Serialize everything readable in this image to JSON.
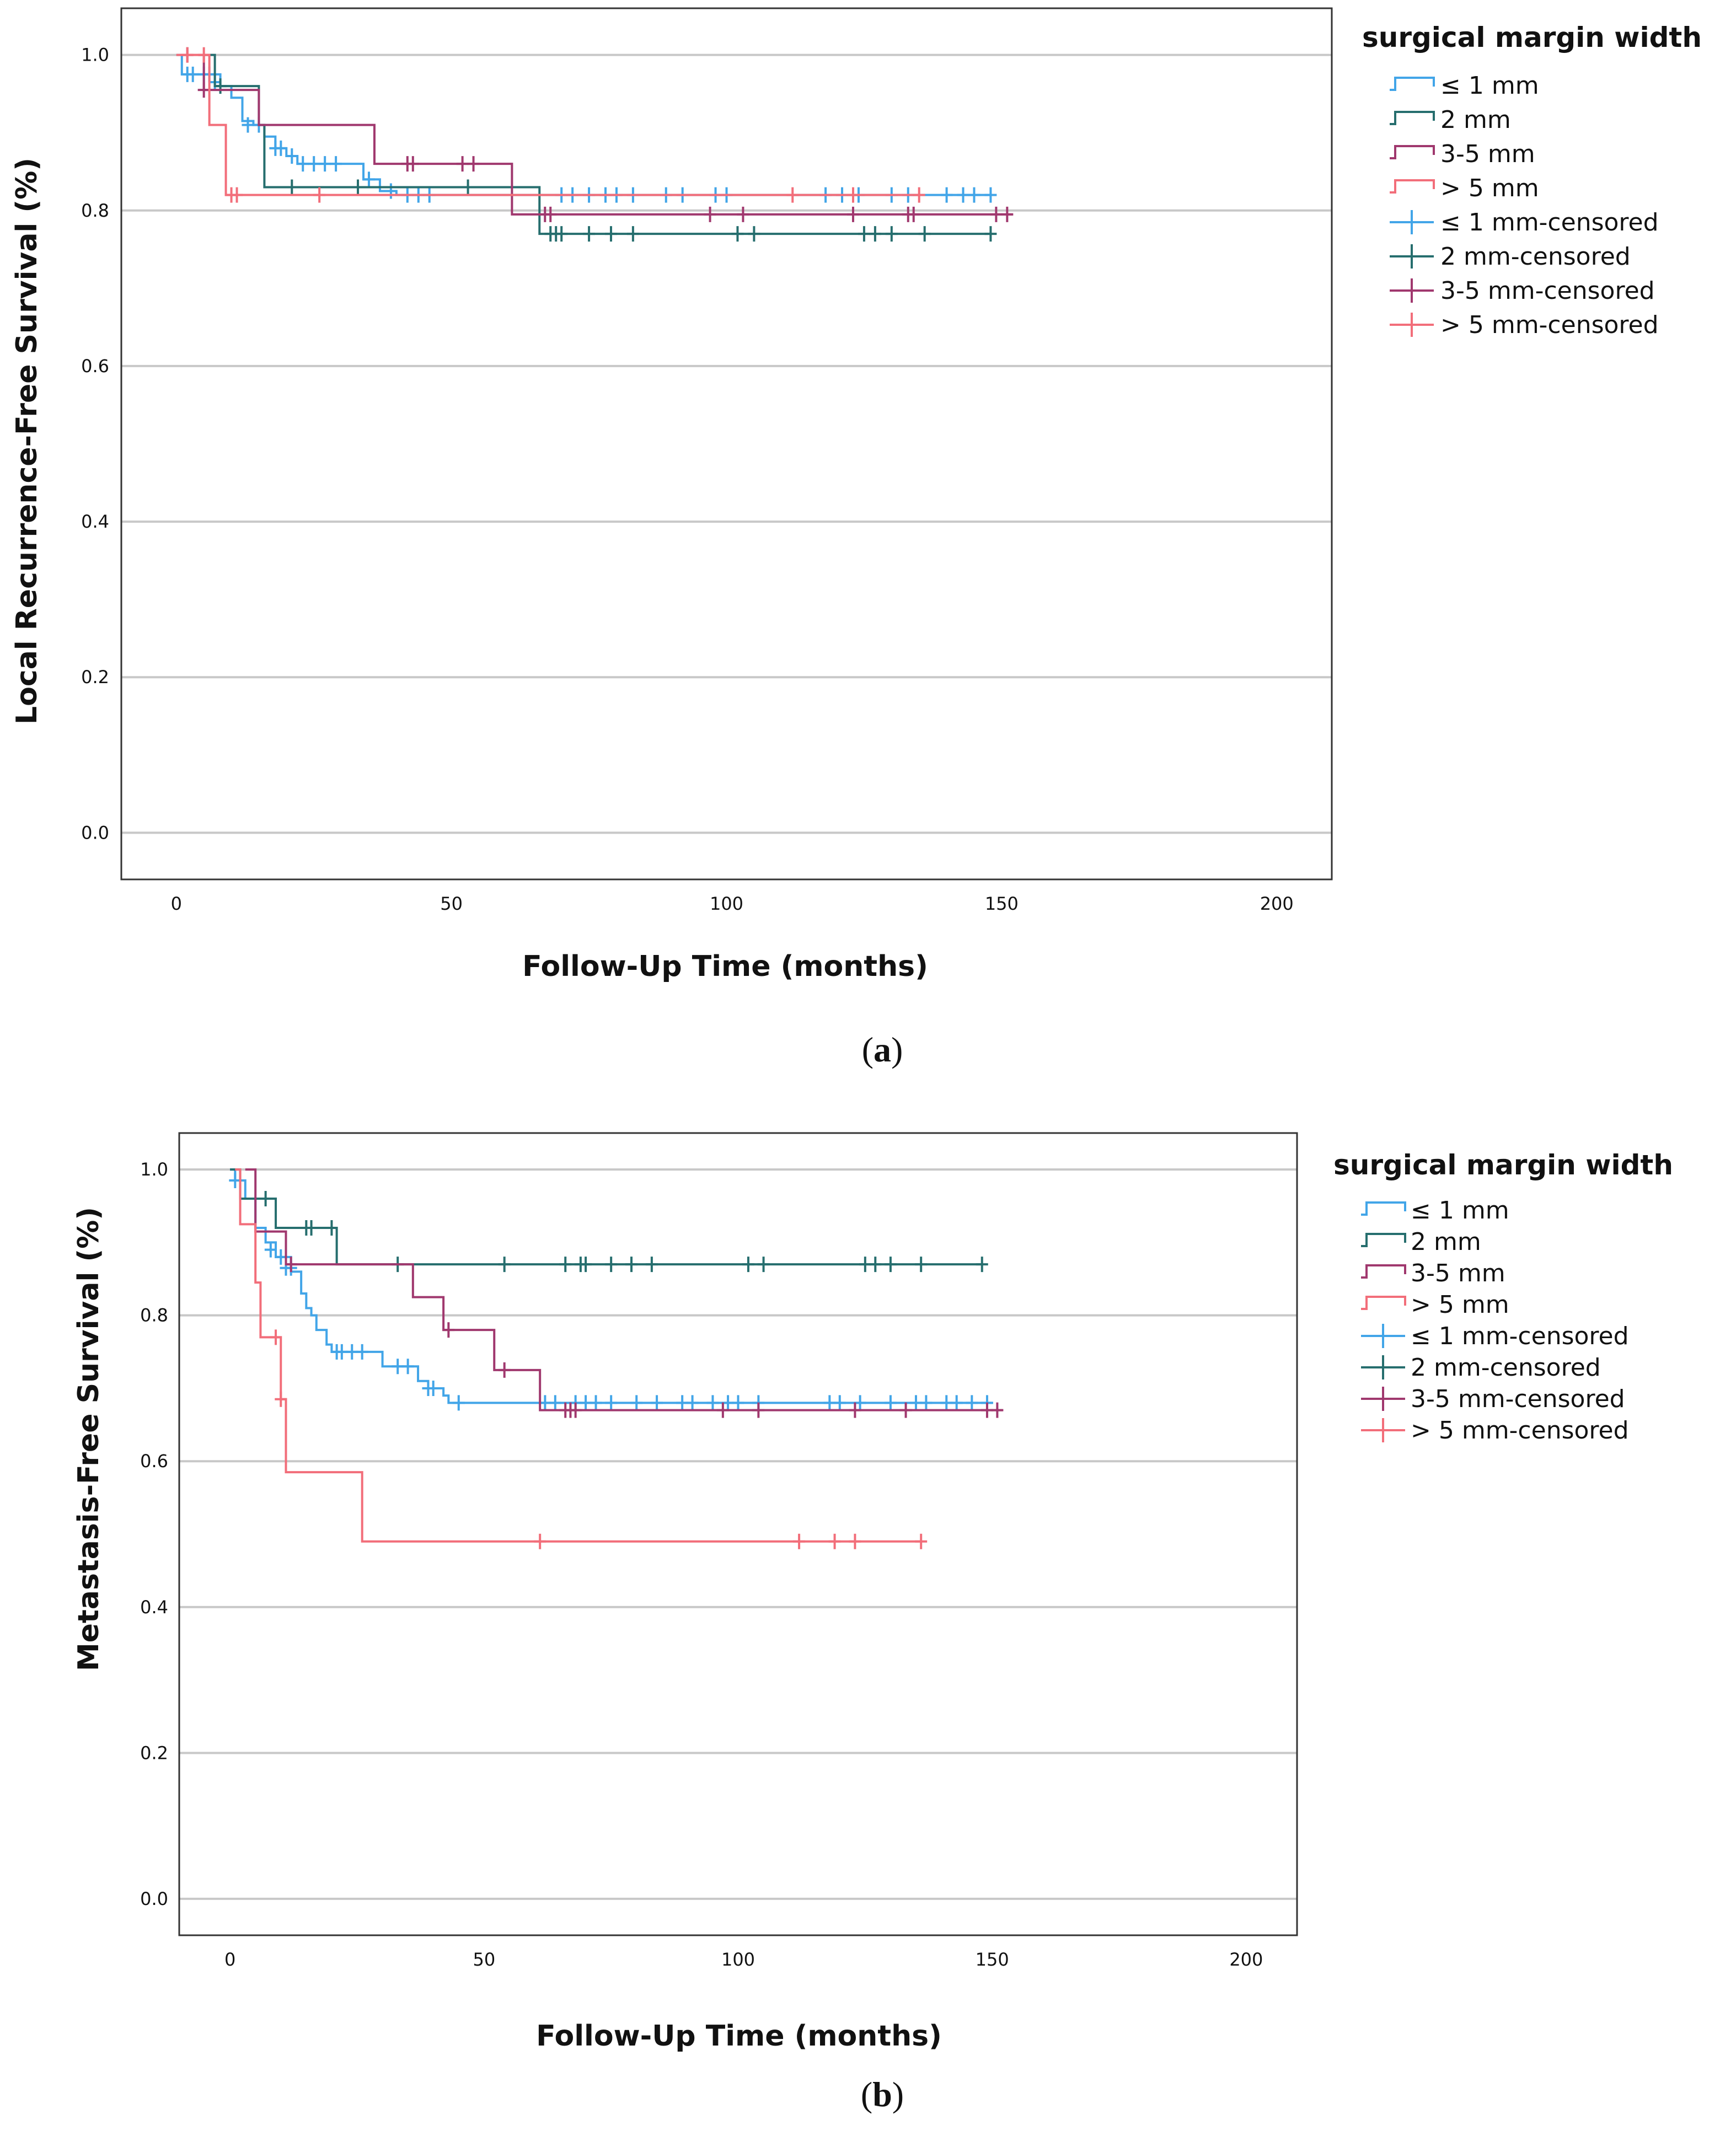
{
  "colors": {
    "le1": "#42a5e8",
    "mm2": "#266e6e",
    "mm35": "#a0386e",
    "gt5": "#f26e7a",
    "grid": "#c8c8c8",
    "frame": "#333333"
  },
  "chart_data": [
    {
      "type": "line",
      "panel_label": "a",
      "title": "",
      "xlabel": "Follow-Up Time (months)",
      "ylabel": "Local Recurrence-Free Survival (%)",
      "xlim": [
        -10,
        210
      ],
      "ylim": [
        -0.06,
        1.06
      ],
      "xticks": [
        0,
        50,
        100,
        150,
        200
      ],
      "yticks": [
        0.0,
        0.2,
        0.4,
        0.6,
        0.8,
        1.0
      ],
      "xtick_labels": [
        "0",
        "50",
        "100",
        "150",
        "200"
      ],
      "ytick_labels": [
        "0.0",
        "0.2",
        "0.4",
        "0.6",
        "0.8",
        "1.0"
      ],
      "grid": "horizontal",
      "legend": {
        "title": "surgical margin width",
        "placement": "top-right outside",
        "entries": [
          "≤ 1 mm",
          "2 mm",
          "3-5 mm",
          "> 5 mm",
          "≤ 1 mm-censored",
          "2 mm-censored",
          "3-5 mm-censored",
          "> 5 mm-censored"
        ]
      },
      "series": [
        {
          "name": "≤ 1 mm",
          "color_key": "le1",
          "steps": [
            [
              0,
              1.0
            ],
            [
              1,
              0.975
            ],
            [
              8,
              0.96
            ],
            [
              10,
              0.945
            ],
            [
              12,
              0.915
            ],
            [
              14,
              0.91
            ],
            [
              16,
              0.895
            ],
            [
              18,
              0.88
            ],
            [
              20,
              0.87
            ],
            [
              22,
              0.86
            ],
            [
              34,
              0.84
            ],
            [
              37,
              0.825
            ],
            [
              40,
              0.82
            ],
            [
              148,
              0.82
            ]
          ],
          "censored": [
            [
              2,
              0.975
            ],
            [
              3,
              0.975
            ],
            [
              5,
              0.975
            ],
            [
              6,
              0.975
            ],
            [
              7,
              0.965
            ],
            [
              13,
              0.91
            ],
            [
              15,
              0.91
            ],
            [
              18,
              0.88
            ],
            [
              19,
              0.88
            ],
            [
              21,
              0.87
            ],
            [
              23,
              0.86
            ],
            [
              25,
              0.86
            ],
            [
              27,
              0.86
            ],
            [
              29,
              0.86
            ],
            [
              35,
              0.84
            ],
            [
              39,
              0.825
            ],
            [
              42,
              0.82
            ],
            [
              44,
              0.82
            ],
            [
              46,
              0.82
            ],
            [
              70,
              0.82
            ],
            [
              72,
              0.82
            ],
            [
              75,
              0.82
            ],
            [
              78,
              0.82
            ],
            [
              80,
              0.82
            ],
            [
              83,
              0.82
            ],
            [
              89,
              0.82
            ],
            [
              92,
              0.82
            ],
            [
              98,
              0.82
            ],
            [
              100,
              0.82
            ],
            [
              118,
              0.82
            ],
            [
              121,
              0.82
            ],
            [
              124,
              0.82
            ],
            [
              130,
              0.82
            ],
            [
              133,
              0.82
            ],
            [
              140,
              0.82
            ],
            [
              143,
              0.82
            ],
            [
              145,
              0.82
            ],
            [
              148,
              0.82
            ]
          ]
        },
        {
          "name": "2 mm",
          "color_key": "mm2",
          "steps": [
            [
              5,
              1.0
            ],
            [
              7,
              0.96
            ],
            [
              15,
              0.91
            ],
            [
              16,
              0.83
            ],
            [
              66,
              0.77
            ],
            [
              148,
              0.77
            ]
          ],
          "censored": [
            [
              8,
              0.96
            ],
            [
              21,
              0.83
            ],
            [
              33,
              0.83
            ],
            [
              53,
              0.83
            ],
            [
              68,
              0.77
            ],
            [
              69,
              0.77
            ],
            [
              70,
              0.77
            ],
            [
              75,
              0.77
            ],
            [
              79,
              0.77
            ],
            [
              83,
              0.77
            ],
            [
              102,
              0.77
            ],
            [
              105,
              0.77
            ],
            [
              125,
              0.77
            ],
            [
              127,
              0.77
            ],
            [
              130,
              0.77
            ],
            [
              136,
              0.77
            ],
            [
              148,
              0.77
            ]
          ]
        },
        {
          "name": "3-5 mm",
          "color_key": "mm35",
          "steps": [
            [
              4,
              1.0
            ],
            [
              5,
              0.955
            ],
            [
              12,
              0.955
            ],
            [
              15,
              0.91
            ],
            [
              36,
              0.86
            ],
            [
              61,
              0.795
            ],
            [
              152,
              0.795
            ]
          ],
          "censored": [
            [
              2,
              1.0
            ],
            [
              5,
              0.955
            ],
            [
              42,
              0.86
            ],
            [
              43,
              0.86
            ],
            [
              52,
              0.86
            ],
            [
              54,
              0.86
            ],
            [
              67,
              0.795
            ],
            [
              68,
              0.795
            ],
            [
              97,
              0.795
            ],
            [
              103,
              0.795
            ],
            [
              123,
              0.795
            ],
            [
              133,
              0.795
            ],
            [
              134,
              0.795
            ],
            [
              149,
              0.795
            ],
            [
              151,
              0.795
            ]
          ]
        },
        {
          "name": "> 5 mm",
          "color_key": "gt5",
          "steps": [
            [
              0,
              1.0
            ],
            [
              6,
              0.91
            ],
            [
              9,
              0.82
            ],
            [
              135,
              0.82
            ]
          ],
          "censored": [
            [
              2,
              1.0
            ],
            [
              5,
              1.0
            ],
            [
              10,
              0.82
            ],
            [
              11,
              0.82
            ],
            [
              26,
              0.82
            ],
            [
              112,
              0.82
            ],
            [
              123,
              0.82
            ],
            [
              135,
              0.82
            ]
          ]
        }
      ]
    },
    {
      "type": "line",
      "panel_label": "b",
      "title": "",
      "xlabel": "Follow-Up Time (months)",
      "ylabel": "Metastasis-Free Survival (%)",
      "xlim": [
        -10,
        210
      ],
      "ylim": [
        -0.05,
        1.05
      ],
      "xticks": [
        0,
        50,
        100,
        150,
        200
      ],
      "yticks": [
        0.0,
        0.2,
        0.4,
        0.6,
        0.8,
        1.0
      ],
      "xtick_labels": [
        "0",
        "50",
        "100",
        "150",
        "200"
      ],
      "ytick_labels": [
        "0.0",
        "0.2",
        "0.4",
        "0.6",
        "0.8",
        "1.0"
      ],
      "grid": "horizontal",
      "legend": {
        "title": "surgical margin width",
        "placement": "top-right outside",
        "entries": [
          "≤ 1 mm",
          "2 mm",
          "3-5 mm",
          "> 5 mm",
          "≤ 1 mm-censored",
          "2 mm-censored",
          "3-5 mm-censored",
          "> 5 mm-censored"
        ]
      },
      "series": [
        {
          "name": "≤ 1 mm",
          "color_key": "le1",
          "steps": [
            [
              0,
              1.0
            ],
            [
              1,
              0.985
            ],
            [
              3,
              0.96
            ],
            [
              5,
              0.92
            ],
            [
              7,
              0.9
            ],
            [
              9,
              0.88
            ],
            [
              12,
              0.86
            ],
            [
              14,
              0.83
            ],
            [
              15,
              0.81
            ],
            [
              16,
              0.8
            ],
            [
              17,
              0.78
            ],
            [
              19,
              0.76
            ],
            [
              20,
              0.75
            ],
            [
              30,
              0.73
            ],
            [
              37,
              0.71
            ],
            [
              39,
              0.7
            ],
            [
              42,
              0.69
            ],
            [
              43,
              0.68
            ],
            [
              150,
              0.68
            ]
          ],
          "censored": [
            [
              1,
              0.985
            ],
            [
              8,
              0.89
            ],
            [
              10,
              0.88
            ],
            [
              11,
              0.865
            ],
            [
              12,
              0.865
            ],
            [
              21,
              0.75
            ],
            [
              22,
              0.75
            ],
            [
              24,
              0.75
            ],
            [
              26,
              0.75
            ],
            [
              33,
              0.73
            ],
            [
              35,
              0.73
            ],
            [
              39,
              0.7
            ],
            [
              40,
              0.7
            ],
            [
              45,
              0.68
            ],
            [
              62,
              0.68
            ],
            [
              64,
              0.68
            ],
            [
              68,
              0.68
            ],
            [
              70,
              0.68
            ],
            [
              72,
              0.68
            ],
            [
              75,
              0.68
            ],
            [
              80,
              0.68
            ],
            [
              84,
              0.68
            ],
            [
              89,
              0.68
            ],
            [
              91,
              0.68
            ],
            [
              95,
              0.68
            ],
            [
              98,
              0.68
            ],
            [
              100,
              0.68
            ],
            [
              104,
              0.68
            ],
            [
              118,
              0.68
            ],
            [
              120,
              0.68
            ],
            [
              124,
              0.68
            ],
            [
              130,
              0.68
            ],
            [
              135,
              0.68
            ],
            [
              137,
              0.68
            ],
            [
              141,
              0.68
            ],
            [
              143,
              0.68
            ],
            [
              146,
              0.68
            ],
            [
              149,
              0.68
            ]
          ]
        },
        {
          "name": "2 mm",
          "color_key": "mm2",
          "steps": [
            [
              0,
              1.0
            ],
            [
              2,
              0.96
            ],
            [
              9,
              0.92
            ],
            [
              21,
              0.87
            ],
            [
              148,
              0.87
            ]
          ],
          "censored": [
            [
              7,
              0.96
            ],
            [
              15,
              0.92
            ],
            [
              16,
              0.92
            ],
            [
              20,
              0.92
            ],
            [
              33,
              0.87
            ],
            [
              54,
              0.87
            ],
            [
              66,
              0.87
            ],
            [
              69,
              0.87
            ],
            [
              70,
              0.87
            ],
            [
              75,
              0.87
            ],
            [
              79,
              0.87
            ],
            [
              83,
              0.87
            ],
            [
              102,
              0.87
            ],
            [
              105,
              0.87
            ],
            [
              125,
              0.87
            ],
            [
              127,
              0.87
            ],
            [
              130,
              0.87
            ],
            [
              136,
              0.87
            ],
            [
              148,
              0.87
            ]
          ]
        },
        {
          "name": "3-5 mm",
          "color_key": "mm35",
          "steps": [
            [
              3,
              1.0
            ],
            [
              5,
              0.915
            ],
            [
              11,
              0.87
            ],
            [
              36,
              0.825
            ],
            [
              42,
              0.78
            ],
            [
              52,
              0.725
            ],
            [
              61,
              0.67
            ],
            [
              152,
              0.67
            ]
          ],
          "censored": [
            [
              12,
              0.87
            ],
            [
              43,
              0.78
            ],
            [
              54,
              0.725
            ],
            [
              66,
              0.67
            ],
            [
              67,
              0.67
            ],
            [
              68,
              0.67
            ],
            [
              97,
              0.67
            ],
            [
              104,
              0.67
            ],
            [
              123,
              0.67
            ],
            [
              133,
              0.67
            ],
            [
              149,
              0.67
            ],
            [
              151,
              0.67
            ]
          ]
        },
        {
          "name": "> 5 mm",
          "color_key": "gt5",
          "steps": [
            [
              1,
              1.0
            ],
            [
              2,
              0.925
            ],
            [
              5,
              0.845
            ],
            [
              6,
              0.77
            ],
            [
              10,
              0.685
            ],
            [
              11,
              0.585
            ],
            [
              26,
              0.49
            ],
            [
              136,
              0.49
            ]
          ],
          "censored": [
            [
              9,
              0.77
            ],
            [
              10,
              0.685
            ],
            [
              61,
              0.49
            ],
            [
              112,
              0.49
            ],
            [
              119,
              0.49
            ],
            [
              123,
              0.49
            ],
            [
              136,
              0.49
            ]
          ]
        }
      ]
    }
  ]
}
